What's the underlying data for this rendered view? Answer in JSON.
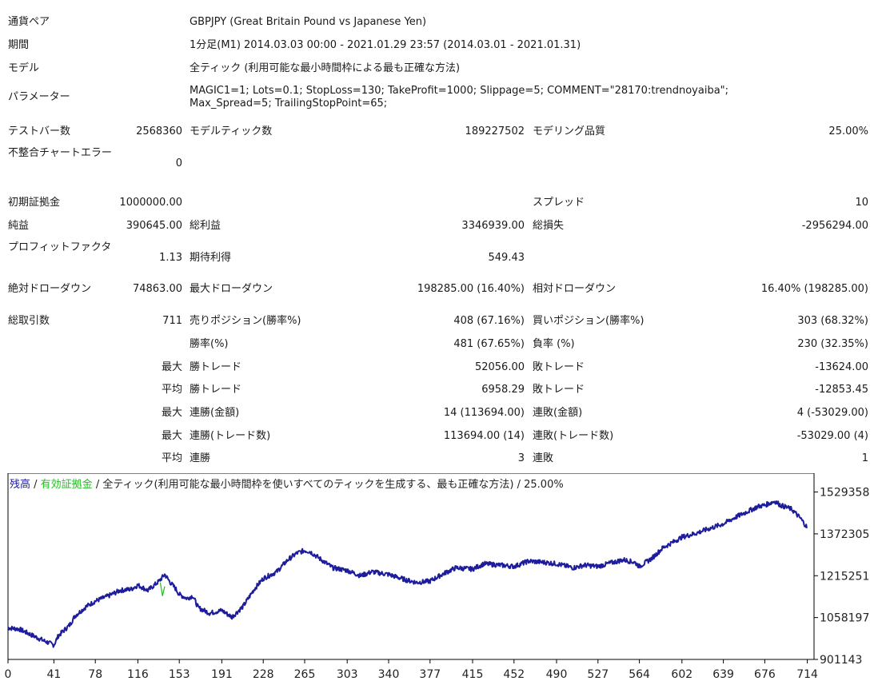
{
  "report": {
    "symbol_label": "通貨ペア",
    "symbol_value": "GBPJPY (Great Britain Pound vs Japanese Yen)",
    "period_label": "期間",
    "period_value": "1分足(M1) 2014.03.03 00:00 - 2021.01.29 23:57 (2014.03.01 - 2021.01.31)",
    "model_label": "モデル",
    "model_value": "全ティック (利用可能な最小時間枠による最も正確な方法)",
    "params_label": "パラメーター",
    "params_value": "MAGIC1=1; Lots=0.1; StopLoss=130; TakeProfit=1000; Slippage=5; COMMENT=\"28170:trendnoyaiba\"; Max_Spread=5; TrailingStopPoint=65;"
  },
  "stats": {
    "bars_label": "テストバー数",
    "bars_value": "2568360",
    "ticks_label": "モデルティック数",
    "ticks_value": "189227502",
    "quality_label": "モデリング品質",
    "quality_value": "25.00%",
    "mismatch_label": "不整合チャートエラー",
    "mismatch_value": "0",
    "deposit_label": "初期証拠金",
    "deposit_value": "1000000.00",
    "spread_label": "スプレッド",
    "spread_value": "10",
    "net_label": "純益",
    "net_value": "390645.00",
    "gross_profit_label": "総利益",
    "gross_profit_value": "3346939.00",
    "gross_loss_label": "総損失",
    "gross_loss_value": "-2956294.00",
    "pf_label": "プロフィットファクタ",
    "pf_value": "1.13",
    "expected_label": "期待利得",
    "expected_value": "549.43",
    "abs_dd_label": "絶対ドローダウン",
    "abs_dd_value": "74863.00",
    "max_dd_label": "最大ドローダウン",
    "max_dd_value": "198285.00 (16.40%)",
    "rel_dd_label": "相対ドローダウン",
    "rel_dd_value": "16.40% (198285.00)",
    "total_trades_label": "総取引数",
    "total_trades_value": "711",
    "short_label": "売りポジション(勝率%)",
    "short_value": "408 (67.16%)",
    "long_label": "買いポジション(勝率%)",
    "long_value": "303 (68.32%)",
    "win_rate_label": "勝率(%)",
    "win_rate_value": "481 (67.65%)",
    "loss_rate_label": "負率 (%)",
    "loss_rate_value": "230 (32.35%)",
    "max_label": "最大",
    "avg_label": "平均",
    "largest_win_label": "勝トレード",
    "largest_win_value": "52056.00",
    "largest_loss_label": "敗トレード",
    "largest_loss_value": "-13624.00",
    "avg_win_label": "勝トレード",
    "avg_win_value": "6958.29",
    "avg_loss_label": "敗トレード",
    "avg_loss_value": "-12853.45",
    "max_consec_win_money_label": "連勝(金額)",
    "max_consec_win_money_value": "14 (113694.00)",
    "max_consec_loss_money_label": "連敗(金額)",
    "max_consec_loss_money_value": "4 (-53029.00)",
    "max_consec_win_count_label": "連勝(トレード数)",
    "max_consec_win_count_value": "113694.00 (14)",
    "max_consec_loss_count_label": "連敗(トレード数)",
    "max_consec_loss_count_value": "-53029.00 (4)",
    "avg_consec_win_label": "連勝",
    "avg_consec_win_value": "3",
    "avg_consec_loss_label": "連敗",
    "avg_consec_loss_value": "1"
  },
  "chart_data": {
    "type": "line",
    "legend": {
      "balance": "残高",
      "sep1": " / ",
      "equity": "有効証拠金",
      "rest": " / 全ティック(利用可能な最小時間枠を使いすべてのティックを生成する、最も正確な方法) / 25.00%"
    },
    "colors": {
      "balance": "#1c1c9c",
      "equity": "#22bb22",
      "text": "#222222",
      "axis": "#000000"
    },
    "x_ticks": [
      "0",
      "41",
      "78",
      "116",
      "153",
      "191",
      "228",
      "265",
      "303",
      "340",
      "377",
      "415",
      "452",
      "490",
      "527",
      "564",
      "602",
      "639",
      "676",
      "714"
    ],
    "y_ticks": [
      "1529358",
      "1372305",
      "1215251",
      "1058197",
      "901143"
    ],
    "xlim": [
      0,
      720
    ],
    "ylim": [
      901143,
      1600000
    ],
    "series": [
      {
        "key": "balance",
        "x": [
          0,
          10,
          20,
          30,
          41,
          45,
          55,
          60,
          70,
          78,
          90,
          100,
          110,
          116,
          125,
          135,
          140,
          145,
          150,
          153,
          160,
          165,
          170,
          180,
          191,
          200,
          210,
          220,
          228,
          240,
          250,
          258,
          265,
          270,
          280,
          290,
          303,
          315,
          325,
          340,
          355,
          365,
          377,
          390,
          400,
          415,
          425,
          440,
          452,
          465,
          480,
          490,
          505,
          515,
          527,
          540,
          550,
          560,
          564,
          575,
          585,
          602,
          615,
          625,
          639,
          650,
          660,
          670,
          676,
          685,
          690,
          700,
          708,
          714
        ],
        "y": [
          1020000,
          1015000,
          995000,
          975000,
          955000,
          990000,
          1030000,
          1065000,
          1100000,
          1120000,
          1140000,
          1160000,
          1165000,
          1180000,
          1160000,
          1195000,
          1220000,
          1190000,
          1165000,
          1145000,
          1130000,
          1140000,
          1095000,
          1075000,
          1085000,
          1060000,
          1100000,
          1165000,
          1205000,
          1230000,
          1275000,
          1300000,
          1310000,
          1305000,
          1275000,
          1245000,
          1235000,
          1215000,
          1230000,
          1220000,
          1200000,
          1190000,
          1195000,
          1225000,
          1245000,
          1240000,
          1260000,
          1255000,
          1250000,
          1270000,
          1265000,
          1260000,
          1245000,
          1255000,
          1250000,
          1265000,
          1275000,
          1265000,
          1250000,
          1280000,
          1320000,
          1360000,
          1375000,
          1390000,
          1410000,
          1435000,
          1455000,
          1475000,
          1480000,
          1495000,
          1480000,
          1465000,
          1430000,
          1395000
        ]
      },
      {
        "key": "equity",
        "x": [
          136,
          138,
          140
        ],
        "y": [
          1190000,
          1140000,
          1175000
        ]
      }
    ]
  }
}
